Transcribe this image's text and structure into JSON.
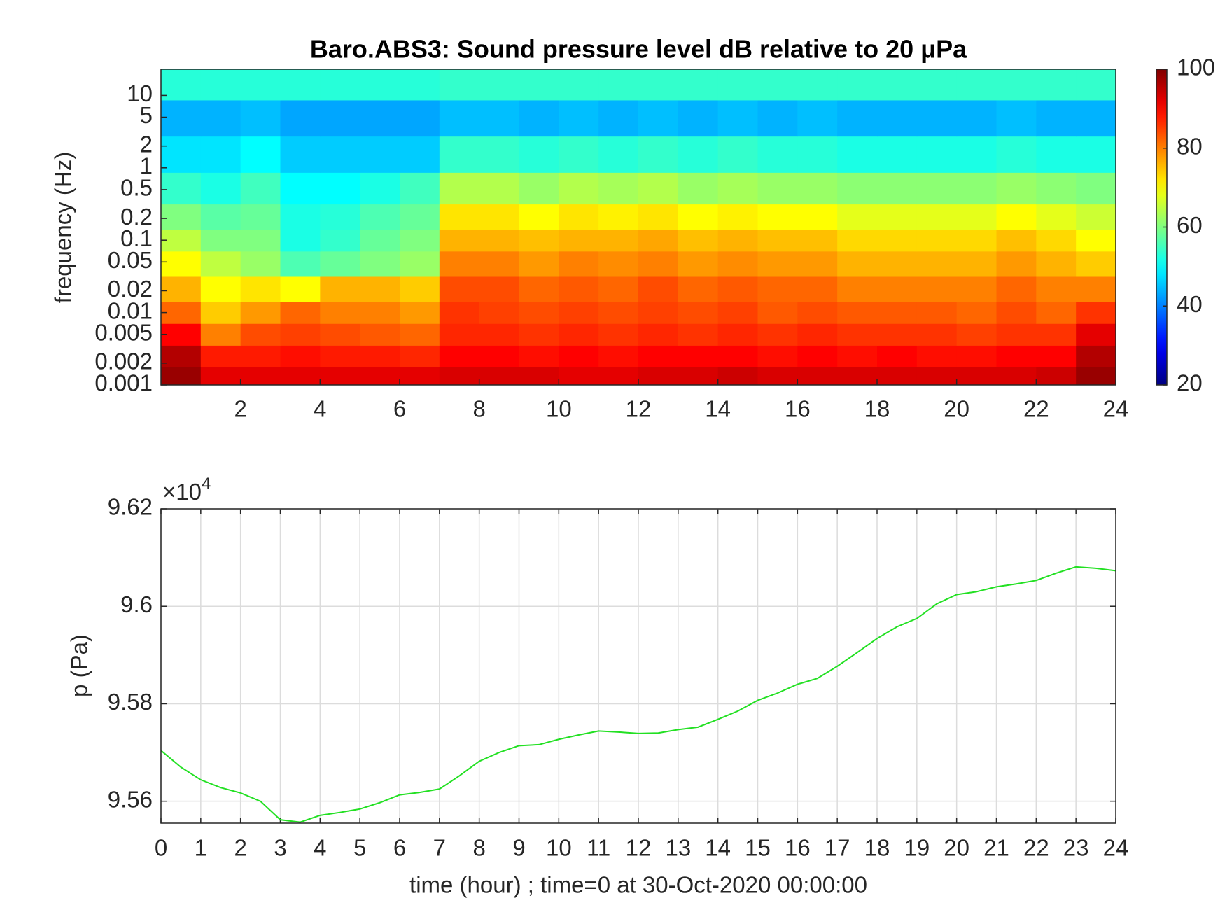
{
  "chart_data": [
    {
      "type": "heatmap",
      "title": "Baro.ABS3: Sound pressure level dB relative to 20 μPa",
      "y_label": "frequency (Hz)",
      "colormap": "jet",
      "ylog": true,
      "x": [
        0.5,
        1.5,
        2.5,
        3.5,
        4.5,
        5.5,
        6.5,
        7.5,
        8.5,
        9.5,
        10.5,
        11.5,
        12.5,
        13.5,
        14.5,
        15.5,
        16.5,
        17.5,
        18.5,
        19.5,
        20.5,
        21.5,
        22.5,
        23.5
      ],
      "y": [
        0.0013,
        0.0025,
        0.005,
        0.01,
        0.02,
        0.05,
        0.1,
        0.2,
        0.5,
        1.5,
        5,
        15
      ],
      "values": [
        [
          98,
          92,
          92,
          92,
          92,
          92,
          92,
          93,
          93,
          93,
          92,
          92,
          93,
          93,
          94,
          93,
          93,
          93,
          93,
          93,
          93,
          93,
          94,
          98
        ],
        [
          96,
          88,
          88,
          89,
          88,
          88,
          87,
          90,
          90,
          89,
          90,
          89,
          90,
          90,
          90,
          89,
          90,
          89,
          90,
          89,
          89,
          90,
          90,
          96
        ],
        [
          90,
          80,
          84,
          85,
          84,
          83,
          82,
          87,
          87,
          86,
          87,
          86,
          87,
          86,
          87,
          86,
          87,
          86,
          86,
          86,
          85,
          86,
          86,
          92
        ],
        [
          82,
          74,
          78,
          82,
          80,
          80,
          78,
          86,
          85,
          84,
          85,
          84,
          85,
          84,
          85,
          83,
          84,
          83,
          83,
          83,
          82,
          84,
          82,
          86
        ],
        [
          76,
          70,
          72,
          70,
          76,
          76,
          74,
          84,
          84,
          82,
          83,
          82,
          84,
          82,
          83,
          82,
          82,
          80,
          80,
          80,
          80,
          82,
          80,
          80
        ],
        [
          70,
          65,
          62,
          56,
          58,
          60,
          62,
          80,
          80,
          78,
          80,
          79,
          80,
          78,
          79,
          78,
          78,
          76,
          76,
          76,
          76,
          78,
          76,
          74
        ],
        [
          65,
          60,
          60,
          52,
          54,
          58,
          60,
          76,
          76,
          75,
          76,
          76,
          77,
          75,
          76,
          75,
          75,
          73,
          73,
          73,
          73,
          75,
          73,
          70
        ],
        [
          60,
          57,
          58,
          52,
          53,
          56,
          58,
          72,
          72,
          70,
          72,
          71,
          72,
          70,
          71,
          70,
          70,
          68,
          68,
          68,
          68,
          70,
          68,
          66
        ],
        [
          54,
          52,
          55,
          50,
          50,
          52,
          55,
          64,
          64,
          62,
          64,
          63,
          64,
          62,
          63,
          62,
          62,
          61,
          61,
          61,
          61,
          62,
          61,
          60
        ],
        [
          48,
          48,
          50,
          46,
          46,
          46,
          46,
          54,
          54,
          53,
          54,
          53,
          54,
          53,
          54,
          53,
          53,
          52,
          52,
          52,
          52,
          53,
          52,
          52
        ],
        [
          44,
          44,
          45,
          43,
          43,
          43,
          43,
          45,
          45,
          44,
          45,
          44,
          45,
          44,
          45,
          44,
          45,
          44,
          44,
          44,
          44,
          45,
          44,
          44
        ],
        [
          53,
          53,
          53,
          53,
          53,
          53,
          53,
          54,
          54,
          54,
          54,
          54,
          54,
          54,
          54,
          54,
          54,
          54,
          54,
          54,
          54,
          54,
          54,
          54
        ]
      ],
      "xlim": [
        0,
        24
      ],
      "xticks": [
        2,
        4,
        6,
        8,
        10,
        12,
        14,
        16,
        18,
        20,
        22,
        24
      ],
      "ylim": [
        0.001,
        23
      ],
      "yticks": [
        0.001,
        0.002,
        0.005,
        0.01,
        0.02,
        0.05,
        0.1,
        0.2,
        0.5,
        1,
        2,
        5,
        10
      ],
      "clim": [
        20,
        100
      ],
      "cticks": [
        20,
        40,
        60,
        80,
        100
      ]
    },
    {
      "type": "line",
      "x_label": "time (hour) ; time=0 at 30-Oct-2020 00:00:00",
      "y_label": "p (Pa)",
      "y_multiplier": {
        "base": "×10",
        "exponent": 4
      },
      "x": [
        0,
        0.5,
        1,
        1.5,
        2,
        2.5,
        3,
        3.5,
        4,
        4.5,
        5,
        5.5,
        6,
        6.5,
        7,
        7.5,
        8,
        8.5,
        9,
        9.5,
        10,
        10.5,
        11,
        11.5,
        12,
        12.5,
        13,
        13.5,
        14,
        14.5,
        15,
        15.5,
        16,
        16.5,
        17,
        17.5,
        18,
        18.5,
        19,
        19.5,
        20,
        20.5,
        21,
        21.5,
        22,
        22.5,
        23,
        23.5,
        24
      ],
      "series": [
        {
          "name": "p",
          "color": "#22e022",
          "values": [
            95704,
            95670,
            95644,
            95628,
            95617,
            95600,
            95562,
            95557,
            95571,
            95577,
            95584,
            95597,
            95613,
            95618,
            95625,
            95652,
            95682,
            95700,
            95714,
            95716,
            95727,
            95736,
            95744,
            95742,
            95739,
            95740,
            95747,
            95752,
            95768,
            95785,
            95807,
            95822,
            95840,
            95852,
            95877,
            95905,
            95934,
            95958,
            95975,
            96005,
            96024,
            96030,
            96040,
            96046,
            96053,
            96068,
            96081,
            96078,
            96073
          ]
        }
      ],
      "xlim": [
        0,
        24
      ],
      "xticks": [
        0,
        1,
        2,
        3,
        4,
        5,
        6,
        7,
        8,
        9,
        10,
        11,
        12,
        13,
        14,
        15,
        16,
        17,
        18,
        19,
        20,
        21,
        22,
        23,
        24
      ],
      "ylim": [
        95555,
        96200
      ],
      "yticks": [
        {
          "value": 95600,
          "label": "9.56"
        },
        {
          "value": 95800,
          "label": "9.58"
        },
        {
          "value": 96000,
          "label": "9.6"
        },
        {
          "value": 96200,
          "label": "9.62"
        }
      ],
      "grid": true
    }
  ]
}
